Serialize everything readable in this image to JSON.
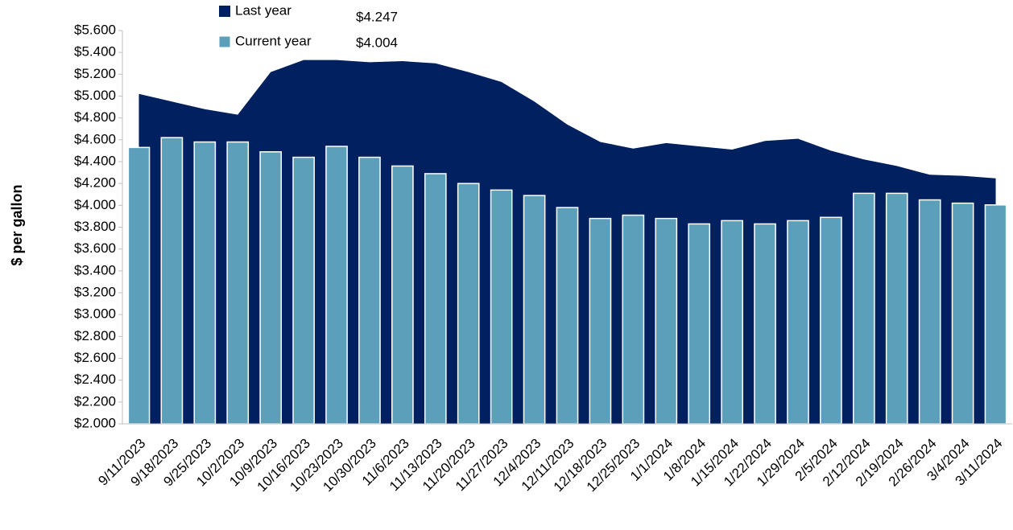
{
  "chart_data": {
    "type": "bar_area",
    "y_axis_label": "$ per gallon",
    "categories": [
      "9/11/2023",
      "9/18/2023",
      "9/25/2023",
      "10/2/2023",
      "10/9/2023",
      "10/16/2023",
      "10/23/2023",
      "10/30/2023",
      "11/6/2023",
      "11/13/2023",
      "11/20/2023",
      "11/27/2023",
      "12/4/2023",
      "12/11/2023",
      "12/18/2023",
      "12/25/2023",
      "1/1/2024",
      "1/8/2024",
      "1/15/2024",
      "1/22/2024",
      "1/29/2024",
      "2/5/2024",
      "2/12/2024",
      "2/19/2024",
      "2/26/2024",
      "3/4/2024",
      "3/11/2024"
    ],
    "series": [
      {
        "name": "Last year",
        "kind": "area",
        "color": "#002060",
        "values": [
          5.02,
          4.95,
          4.88,
          4.83,
          5.22,
          5.33,
          5.33,
          5.31,
          5.32,
          5.3,
          5.22,
          5.13,
          4.95,
          4.74,
          4.58,
          4.52,
          4.57,
          4.54,
          4.51,
          4.59,
          4.61,
          4.5,
          4.42,
          4.36,
          4.28,
          4.27,
          4.247
        ]
      },
      {
        "name": "Current year",
        "kind": "bar",
        "color": "#5b9fba",
        "values": [
          4.53,
          4.62,
          4.58,
          4.58,
          4.49,
          4.44,
          4.54,
          4.44,
          4.36,
          4.29,
          4.2,
          4.14,
          4.09,
          3.98,
          3.88,
          3.91,
          3.88,
          3.83,
          3.86,
          3.83,
          3.86,
          3.89,
          4.11,
          4.11,
          4.05,
          4.02,
          4.004
        ]
      }
    ],
    "annotations": [
      "$4.247",
      "$4.004"
    ],
    "ylim": [
      2.0,
      5.6
    ],
    "yticks": [
      {
        "value": 2.0,
        "label": "$2.000"
      },
      {
        "value": 2.2,
        "label": "$2.200"
      },
      {
        "value": 2.4,
        "label": "$2.400"
      },
      {
        "value": 2.6,
        "label": "$2.600"
      },
      {
        "value": 2.8,
        "label": "$2.800"
      },
      {
        "value": 3.0,
        "label": "$3.000"
      },
      {
        "value": 3.2,
        "label": "$3.200"
      },
      {
        "value": 3.4,
        "label": "$3.400"
      },
      {
        "value": 3.6,
        "label": "$3.600"
      },
      {
        "value": 3.8,
        "label": "$3.800"
      },
      {
        "value": 4.0,
        "label": "$4.000"
      },
      {
        "value": 4.2,
        "label": "$4.200"
      },
      {
        "value": 4.4,
        "label": "$4.400"
      },
      {
        "value": 4.6,
        "label": "$4.600"
      },
      {
        "value": 4.8,
        "label": "$4.800"
      },
      {
        "value": 5.0,
        "label": "$5.000"
      },
      {
        "value": 5.2,
        "label": "$5.200"
      },
      {
        "value": 5.4,
        "label": "$5.400"
      },
      {
        "value": 5.6,
        "label": "$5.600"
      }
    ],
    "grid": false
  }
}
